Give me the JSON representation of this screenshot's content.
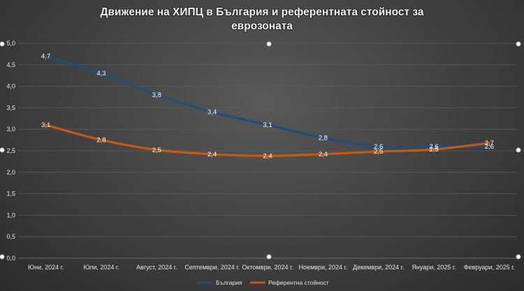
{
  "chart_data": {
    "type": "line",
    "title_lines": [
      "Движение на ХИПЦ в  България и референтната стойност за",
      "еврозоната"
    ],
    "categories": [
      "Юни, 2024 г.",
      "Юли, 2024 г.",
      "Август, 2024 г.",
      "Септември, 2024 г.",
      "Октомври, 2024 г.",
      "Ноември, 2024 г.",
      "Декември, 2024 г.",
      "Януари, 2025 г.",
      "Февруари, 2025 г."
    ],
    "series": [
      {
        "name": "България",
        "color": "#1f4e79",
        "values": [
          4.7,
          4.3,
          3.8,
          3.4,
          3.1,
          2.8,
          2.6,
          2.6,
          2.6
        ],
        "labels": [
          "4,7",
          "4,3",
          "3,8",
          "3,4",
          "3,1",
          "2,8",
          "2,6",
          "2,6",
          "2,6"
        ]
      },
      {
        "name": "Референтна стойност",
        "color": "#c55a11",
        "values": [
          3.1,
          2.75,
          2.52,
          2.42,
          2.38,
          2.42,
          2.48,
          2.53,
          2.68
        ],
        "labels": [
          "3,1",
          "2,8",
          "2,5",
          "2,4",
          "2,4",
          "2,4",
          "2,5",
          "2,5",
          "2,7"
        ]
      }
    ],
    "y_ticks": [
      "0,0",
      "0,5",
      "1,0",
      "1,5",
      "2,0",
      "2,5",
      "3,0",
      "3,5",
      "4,0",
      "4,5",
      "5,0"
    ],
    "ylim": [
      0,
      5
    ],
    "grid": true,
    "legend_position": "bottom"
  }
}
